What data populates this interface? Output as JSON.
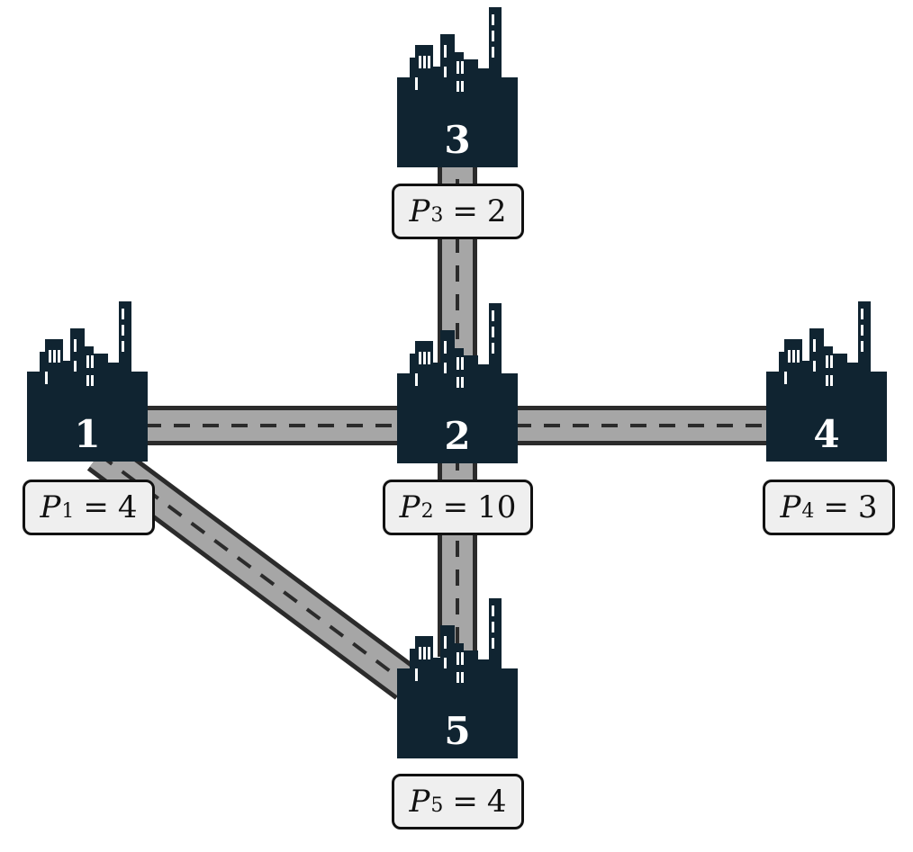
{
  "colors": {
    "city_fill": "#102431",
    "city_window": "#ffffff",
    "road_fill": "#a6a6a6",
    "road_edge": "#2b2b2b",
    "road_dash": "#2b2b2b",
    "label_bg": "#efefef",
    "label_border": "#111111"
  },
  "icons": {
    "city": "city-skyline-icon"
  },
  "cities": [
    {
      "id": "1",
      "label": "1",
      "p_symbol": "P",
      "p_sub": "1",
      "p_eq": "=",
      "p_value": "4"
    },
    {
      "id": "2",
      "label": "2",
      "p_symbol": "P",
      "p_sub": "2",
      "p_eq": "=",
      "p_value": "10"
    },
    {
      "id": "3",
      "label": "3",
      "p_symbol": "P",
      "p_sub": "3",
      "p_eq": "=",
      "p_value": "2"
    },
    {
      "id": "4",
      "label": "4",
      "p_symbol": "P",
      "p_sub": "4",
      "p_eq": "=",
      "p_value": "3"
    },
    {
      "id": "5",
      "label": "5",
      "p_symbol": "P",
      "p_sub": "5",
      "p_eq": "=",
      "p_value": "4"
    }
  ],
  "roads": [
    {
      "from": "1",
      "to": "2"
    },
    {
      "from": "2",
      "to": "4"
    },
    {
      "from": "2",
      "to": "3"
    },
    {
      "from": "2",
      "to": "5"
    },
    {
      "from": "1",
      "to": "5"
    }
  ]
}
